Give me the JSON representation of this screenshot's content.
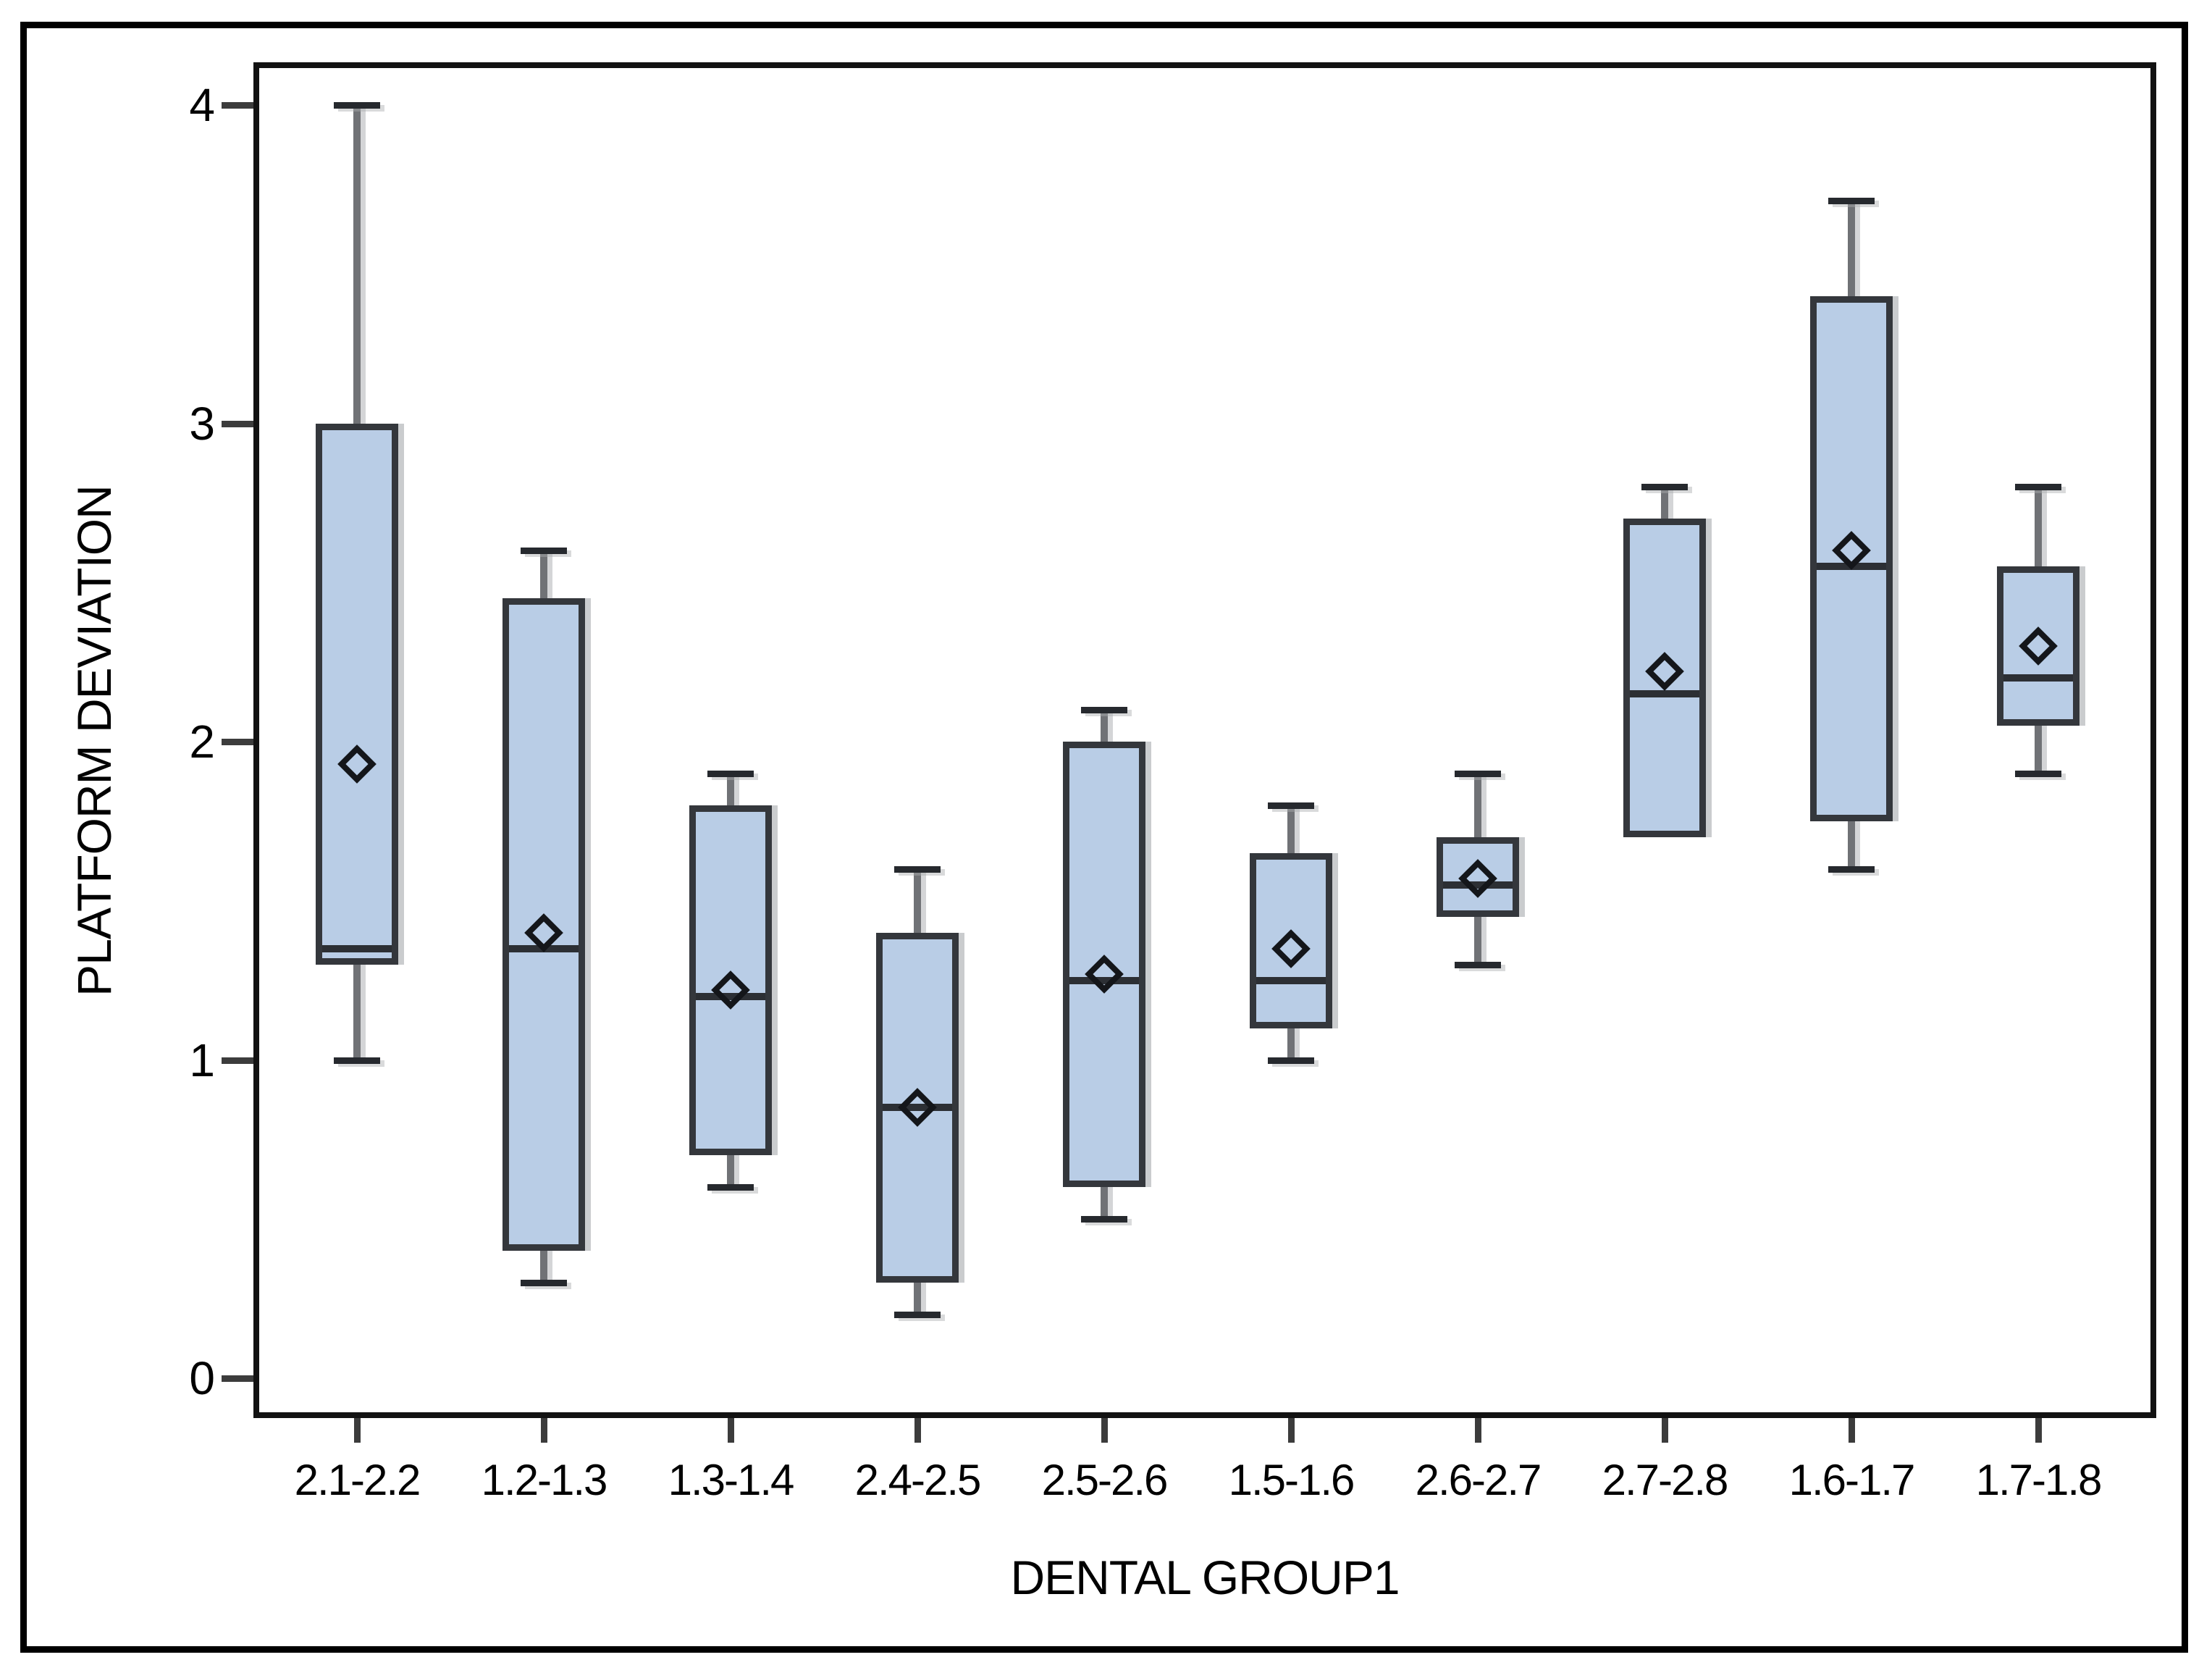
{
  "chart_data": {
    "type": "boxplot",
    "title": "",
    "xlabel": "DENTAL GROUP1",
    "ylabel": "PLATFORM DEVIATION",
    "ylim": [
      -0.13,
      4.13
    ],
    "y_ticks": [
      4,
      3,
      2,
      1,
      0
    ],
    "grid": false,
    "legend": false,
    "marker_meaning": "open diamond = group mean",
    "categories": [
      "2.1-2.2",
      "1.2-1.3",
      "1.3-1.4",
      "2.4-2.5",
      "2.5-2.6",
      "1.5-1.6",
      "2.6-2.7",
      "2.7-2.8",
      "1.6-1.7",
      "1.7-1.8"
    ],
    "groups": [
      {
        "label": "2.1-2.2",
        "whisker_low": 1.0,
        "q1": 1.3,
        "median": 1.35,
        "q3": 3.0,
        "whisker_high": 4.0,
        "mean": 1.93
      },
      {
        "label": "1.2-1.3",
        "whisker_low": 0.3,
        "q1": 0.4,
        "median": 1.35,
        "q3": 2.45,
        "whisker_high": 2.6,
        "mean": 1.4
      },
      {
        "label": "1.3-1.4",
        "whisker_low": 0.6,
        "q1": 0.7,
        "median": 1.2,
        "q3": 1.8,
        "whisker_high": 1.9,
        "mean": 1.22
      },
      {
        "label": "2.4-2.5",
        "whisker_low": 0.2,
        "q1": 0.3,
        "median": 0.85,
        "q3": 1.4,
        "whisker_high": 1.6,
        "mean": 0.85
      },
      {
        "label": "2.5-2.6",
        "whisker_low": 0.5,
        "q1": 0.6,
        "median": 1.25,
        "q3": 2.0,
        "whisker_high": 2.1,
        "mean": 1.27
      },
      {
        "label": "1.5-1.6",
        "whisker_low": 1.0,
        "q1": 1.1,
        "median": 1.25,
        "q3": 1.65,
        "whisker_high": 1.8,
        "mean": 1.35
      },
      {
        "label": "2.6-2.7",
        "whisker_low": 1.3,
        "q1": 1.45,
        "median": 1.55,
        "q3": 1.7,
        "whisker_high": 1.9,
        "mean": 1.57
      },
      {
        "label": "2.7-2.8",
        "whisker_low": 1.7,
        "q1": 1.7,
        "median": 2.15,
        "q3": 2.7,
        "whisker_high": 2.8,
        "mean": 2.22
      },
      {
        "label": "1.6-1.7",
        "whisker_low": 1.6,
        "q1": 1.75,
        "median": 2.55,
        "q3": 3.4,
        "whisker_high": 3.7,
        "mean": 2.6
      },
      {
        "label": "1.7-1.8",
        "whisker_low": 1.9,
        "q1": 2.05,
        "median": 2.2,
        "q3": 2.55,
        "whisker_high": 2.8,
        "mean": 2.3
      }
    ],
    "colors": {
      "box_fill": "#b9cde6",
      "box_border": "#34373c",
      "median": "#2c2f34",
      "whisker_stem": "#707276",
      "whisker_cap": "#26292e",
      "mean_diamond": "#14161a",
      "axis_frame": "#121212",
      "tick": "#3c3c3c",
      "outer_frame": "#000000",
      "background": "#ffffff"
    }
  }
}
